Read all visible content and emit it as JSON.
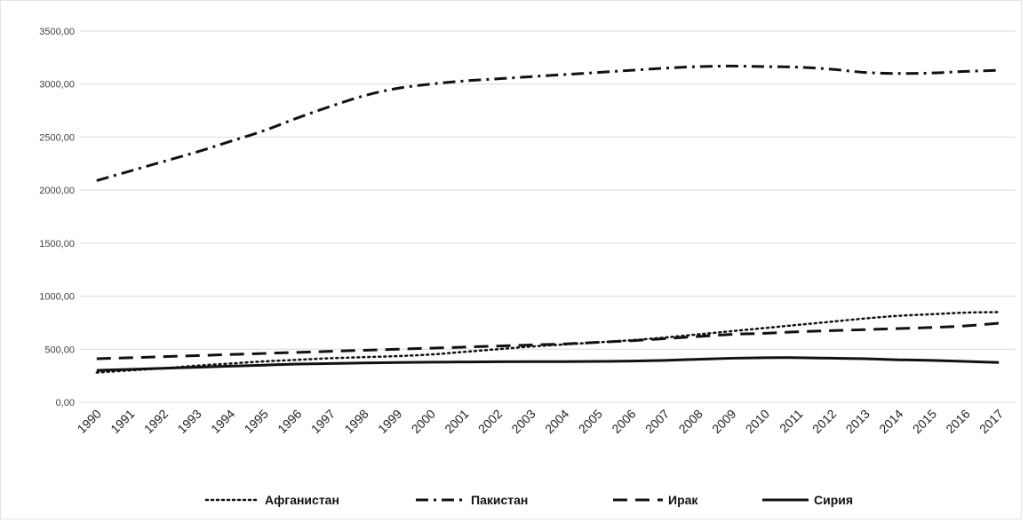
{
  "chart_data": {
    "type": "line",
    "title": "",
    "xlabel": "",
    "ylabel": "",
    "ylim": [
      0,
      3500
    ],
    "y_ticks": [
      "0,00",
      "500,00",
      "1000,00",
      "1500,00",
      "2000,00",
      "2500,00",
      "3000,00",
      "3500,00"
    ],
    "y_tick_values": [
      0,
      500,
      1000,
      1500,
      2000,
      2500,
      3000,
      3500
    ],
    "grid": "horizontal",
    "legend_position": "bottom",
    "categories": [
      "1990",
      "1991",
      "1992",
      "1993",
      "1994",
      "1995",
      "1996",
      "1997",
      "1998",
      "1999",
      "2000",
      "2001",
      "2002",
      "2003",
      "2004",
      "2005",
      "2006",
      "2007",
      "2008",
      "2009",
      "2010",
      "2011",
      "2012",
      "2013",
      "2014",
      "2015",
      "2016",
      "2017"
    ],
    "series": [
      {
        "name": "Афганистан",
        "style": "dotted",
        "values": [
          280,
          300,
          320,
          345,
          365,
          385,
          400,
          415,
          425,
          435,
          450,
          475,
          500,
          525,
          545,
          565,
          585,
          610,
          640,
          670,
          700,
          730,
          760,
          790,
          815,
          830,
          845,
          850
        ]
      },
      {
        "name": "Пакистан",
        "style": "dash-dot",
        "values": [
          2090,
          2180,
          2270,
          2360,
          2460,
          2560,
          2680,
          2790,
          2890,
          2960,
          3000,
          3030,
          3050,
          3070,
          3090,
          3110,
          3130,
          3150,
          3165,
          3170,
          3165,
          3160,
          3140,
          3110,
          3100,
          3105,
          3120,
          3130
        ]
      },
      {
        "name": "Ирак",
        "style": "long-dash",
        "values": [
          410,
          420,
          430,
          440,
          450,
          460,
          470,
          480,
          490,
          500,
          510,
          520,
          530,
          540,
          550,
          565,
          580,
          600,
          620,
          640,
          650,
          665,
          675,
          685,
          695,
          705,
          720,
          745
        ]
      },
      {
        "name": "Сирия",
        "style": "solid",
        "values": [
          300,
          310,
          320,
          330,
          340,
          350,
          360,
          365,
          370,
          375,
          378,
          380,
          382,
          383,
          383,
          385,
          388,
          395,
          405,
          415,
          420,
          420,
          415,
          410,
          400,
          395,
          385,
          375
        ]
      }
    ]
  }
}
